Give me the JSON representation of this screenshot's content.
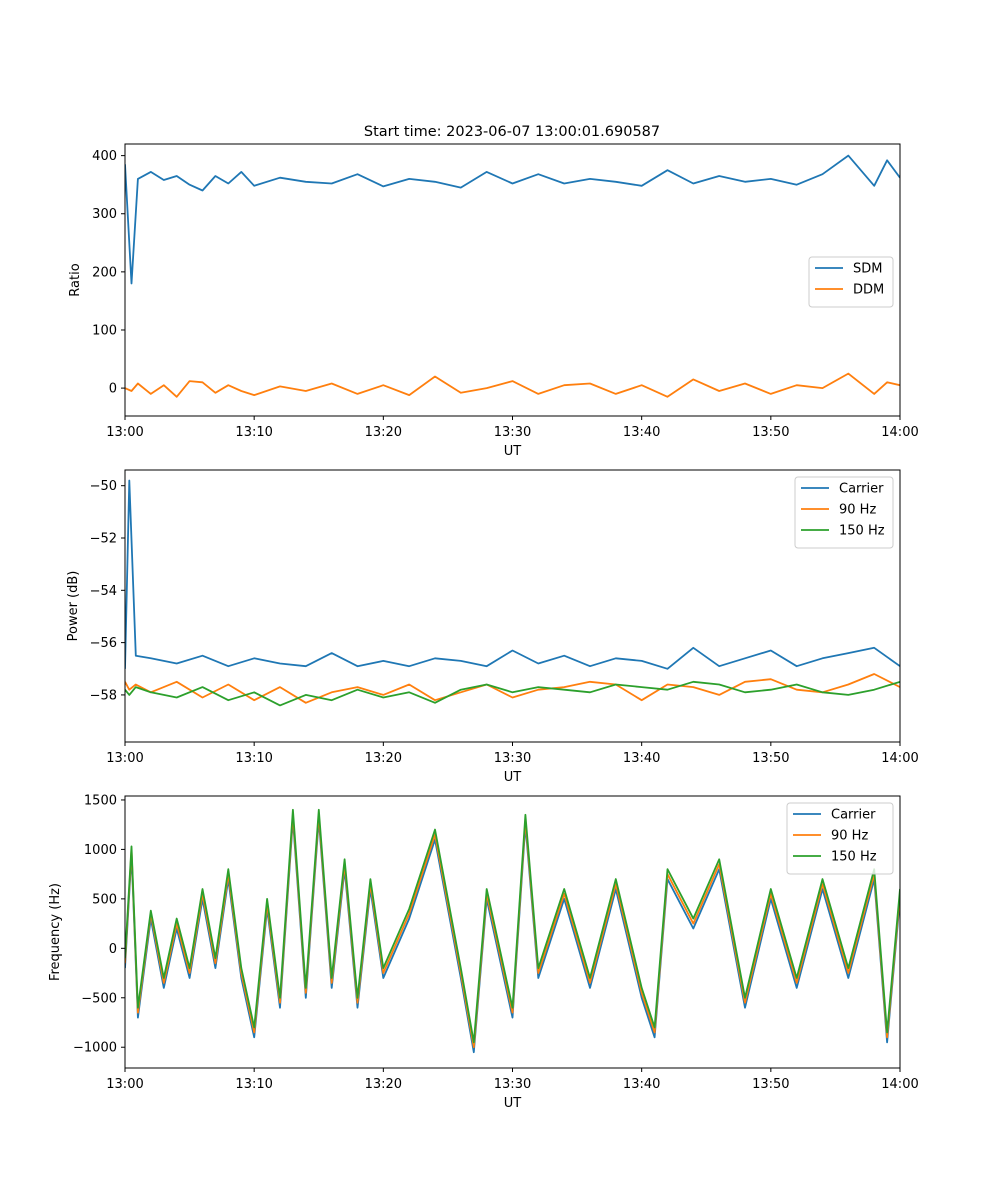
{
  "figure": {
    "title": "Start time: 2023-06-07 13:00:01.690587"
  },
  "chart_data": [
    {
      "type": "line",
      "title": "Start time: 2023-06-07 13:00:01.690587",
      "xlabel": "UT",
      "ylabel": "Ratio",
      "xticks": [
        "13:00",
        "13:10",
        "13:20",
        "13:30",
        "13:40",
        "13:50",
        "14:00"
      ],
      "xlim": [
        "13:00",
        "14:00"
      ],
      "ylim": [
        -48,
        420
      ],
      "yticks": [
        "0",
        "100",
        "200",
        "300",
        "400"
      ],
      "ytick_values": [
        0,
        100,
        200,
        300,
        400
      ],
      "legend_position": "center-right",
      "x": [
        "13:00",
        "13:00:30",
        "13:01",
        "13:02",
        "13:03",
        "13:04",
        "13:05",
        "13:06",
        "13:07",
        "13:08",
        "13:09",
        "13:10",
        "13:12",
        "13:14",
        "13:16",
        "13:18",
        "13:20",
        "13:22",
        "13:24",
        "13:26",
        "13:28",
        "13:30",
        "13:32",
        "13:34",
        "13:36",
        "13:38",
        "13:40",
        "13:42",
        "13:44",
        "13:46",
        "13:48",
        "13:50",
        "13:52",
        "13:54",
        "13:56",
        "13:58",
        "13:59",
        "14:00"
      ],
      "series": [
        {
          "name": "SDM",
          "color": "#1f77b4",
          "values": [
            385,
            180,
            360,
            372,
            358,
            365,
            350,
            340,
            365,
            352,
            372,
            348,
            362,
            355,
            352,
            368,
            347,
            360,
            355,
            345,
            372,
            352,
            368,
            352,
            360,
            355,
            348,
            375,
            352,
            365,
            355,
            360,
            350,
            368,
            400,
            348,
            392,
            362
          ]
        },
        {
          "name": "DDM",
          "color": "#ff7f0e",
          "values": [
            0,
            -5,
            8,
            -10,
            5,
            -15,
            12,
            10,
            -8,
            5,
            -5,
            -12,
            3,
            -5,
            8,
            -10,
            5,
            -12,
            20,
            -8,
            0,
            12,
            -10,
            5,
            8,
            -10,
            5,
            -15,
            15,
            -5,
            8,
            -10,
            5,
            0,
            25,
            -10,
            10,
            5
          ]
        }
      ]
    },
    {
      "type": "line",
      "xlabel": "UT",
      "ylabel": "Power (dB)",
      "xticks": [
        "13:00",
        "13:10",
        "13:20",
        "13:30",
        "13:40",
        "13:50",
        "14:00"
      ],
      "xlim": [
        "13:00",
        "14:00"
      ],
      "ylim": [
        -59.8,
        -49.4
      ],
      "yticks": [
        "−58",
        "−56",
        "−54",
        "−52",
        "−50"
      ],
      "ytick_values": [
        -58,
        -56,
        -54,
        -52,
        -50
      ],
      "legend_position": "top-right",
      "x": [
        "13:00",
        "13:00:20",
        "13:00:50",
        "13:02",
        "13:04",
        "13:06",
        "13:08",
        "13:10",
        "13:12",
        "13:14",
        "13:16",
        "13:18",
        "13:20",
        "13:22",
        "13:24",
        "13:26",
        "13:28",
        "13:30",
        "13:32",
        "13:34",
        "13:36",
        "13:38",
        "13:40",
        "13:42",
        "13:44",
        "13:46",
        "13:48",
        "13:50",
        "13:52",
        "13:54",
        "13:56",
        "13:58",
        "14:00"
      ],
      "series": [
        {
          "name": "Carrier",
          "color": "#1f77b4",
          "values": [
            -57.0,
            -49.8,
            -56.5,
            -56.6,
            -56.8,
            -56.5,
            -56.9,
            -56.6,
            -56.8,
            -56.9,
            -56.4,
            -56.9,
            -56.7,
            -56.9,
            -56.6,
            -56.7,
            -56.9,
            -56.3,
            -56.8,
            -56.5,
            -56.9,
            -56.6,
            -56.7,
            -57.0,
            -56.2,
            -56.9,
            -56.6,
            -56.3,
            -56.9,
            -56.6,
            -56.4,
            -56.2,
            -56.9
          ]
        },
        {
          "name": "90 Hz",
          "color": "#ff7f0e",
          "values": [
            -57.5,
            -57.8,
            -57.6,
            -57.9,
            -57.5,
            -58.1,
            -57.6,
            -58.2,
            -57.7,
            -58.3,
            -57.9,
            -57.7,
            -58.0,
            -57.6,
            -58.2,
            -57.9,
            -57.6,
            -58.1,
            -57.8,
            -57.7,
            -57.5,
            -57.6,
            -58.2,
            -57.6,
            -57.7,
            -58.0,
            -57.5,
            -57.4,
            -57.8,
            -57.9,
            -57.6,
            -57.2,
            -57.7
          ]
        },
        {
          "name": "150 Hz",
          "color": "#2ca02c",
          "values": [
            -57.8,
            -58.0,
            -57.7,
            -57.9,
            -58.1,
            -57.7,
            -58.2,
            -57.9,
            -58.4,
            -58.0,
            -58.2,
            -57.8,
            -58.1,
            -57.9,
            -58.3,
            -57.8,
            -57.6,
            -57.9,
            -57.7,
            -57.8,
            -57.9,
            -57.6,
            -57.7,
            -57.8,
            -57.5,
            -57.6,
            -57.9,
            -57.8,
            -57.6,
            -57.9,
            -58.0,
            -57.8,
            -57.5
          ]
        }
      ]
    },
    {
      "type": "line",
      "xlabel": "UT",
      "ylabel": "Frequency (Hz)",
      "xticks": [
        "13:00",
        "13:10",
        "13:20",
        "13:30",
        "13:40",
        "13:50",
        "14:00"
      ],
      "xlim": [
        "13:00",
        "14:00"
      ],
      "ylim": [
        -1210,
        1540
      ],
      "yticks": [
        "−1000",
        "−500",
        "0",
        "500",
        "1000",
        "1500"
      ],
      "ytick_values": [
        -1000,
        -500,
        0,
        500,
        1000,
        1500
      ],
      "legend_position": "top-right",
      "x": [
        "13:00",
        "13:00:30",
        "13:01",
        "13:02",
        "13:03",
        "13:04",
        "13:05",
        "13:06",
        "13:07",
        "13:08",
        "13:09",
        "13:10",
        "13:11",
        "13:12",
        "13:13",
        "13:14",
        "13:15",
        "13:16",
        "13:17",
        "13:18",
        "13:19",
        "13:20",
        "13:22",
        "13:24",
        "13:26",
        "13:27",
        "13:28",
        "13:30",
        "13:31",
        "13:32",
        "13:34",
        "13:36",
        "13:38",
        "13:40",
        "13:41",
        "13:42",
        "13:44",
        "13:46",
        "13:48",
        "13:50",
        "13:52",
        "13:54",
        "13:56",
        "13:58",
        "13:59",
        "14:00"
      ],
      "series": [
        {
          "name": "Carrier",
          "color": "#1f77b4",
          "values": [
            -200,
            950,
            -700,
            300,
            -400,
            200,
            -300,
            500,
            -200,
            700,
            -300,
            -900,
            400,
            -600,
            1300,
            -500,
            1300,
            -400,
            800,
            -600,
            600,
            -300,
            300,
            1100,
            -300,
            -1050,
            500,
            -700,
            1250,
            -300,
            500,
            -400,
            600,
            -500,
            -900,
            700,
            200,
            800,
            -600,
            500,
            -400,
            600,
            -300,
            700,
            -950,
            500
          ]
        },
        {
          "name": "90 Hz",
          "color": "#ff7f0e",
          "values": [
            -150,
            1000,
            -650,
            350,
            -350,
            250,
            -250,
            550,
            -150,
            750,
            -250,
            -850,
            450,
            -550,
            1350,
            -450,
            1350,
            -350,
            850,
            -550,
            650,
            -250,
            350,
            1150,
            -250,
            -1000,
            550,
            -650,
            1300,
            -250,
            550,
            -350,
            650,
            -450,
            -850,
            750,
            250,
            850,
            -550,
            550,
            -350,
            650,
            -250,
            750,
            -900,
            550
          ]
        },
        {
          "name": "150 Hz",
          "color": "#2ca02c",
          "values": [
            -100,
            1030,
            -600,
            380,
            -300,
            300,
            -200,
            600,
            -100,
            800,
            -200,
            -800,
            500,
            -500,
            1400,
            -400,
            1400,
            -300,
            900,
            -500,
            700,
            -200,
            400,
            1200,
            -200,
            -950,
            600,
            -600,
            1350,
            -200,
            600,
            -300,
            700,
            -400,
            -800,
            800,
            300,
            900,
            -500,
            600,
            -300,
            700,
            -200,
            800,
            -850,
            600
          ]
        }
      ]
    }
  ]
}
